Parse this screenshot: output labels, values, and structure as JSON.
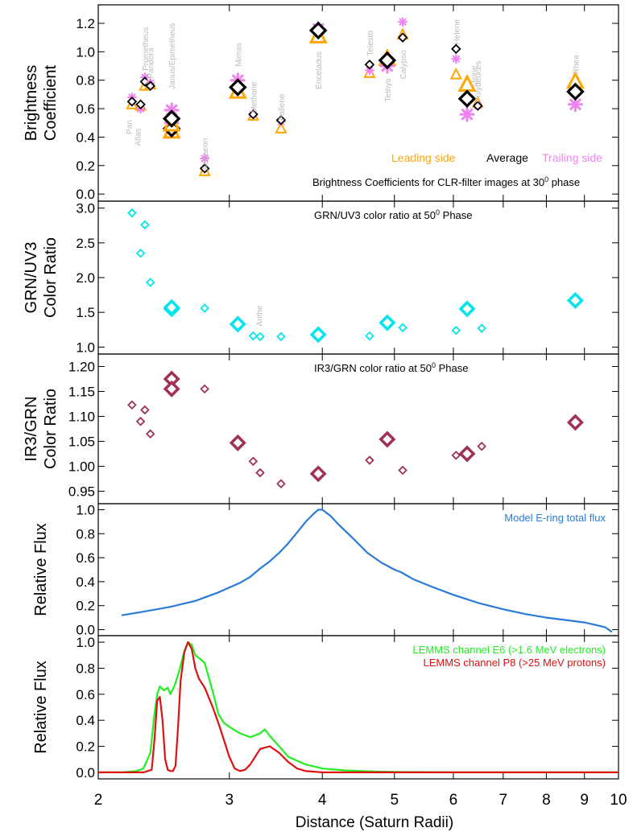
{
  "chart_data": [
    {
      "id": "brightness",
      "type": "scatter",
      "ylabel_lines": [
        "Brightness",
        "Coefficient"
      ],
      "ylim": [
        -0.05,
        1.33
      ],
      "yticks": [
        "1.2",
        "1.0",
        "0.8",
        "0.6",
        "0.4",
        "0.2",
        "0.0"
      ],
      "ytick_values": [
        1.2,
        1.0,
        0.8,
        0.6,
        0.4,
        0.2,
        0.0
      ],
      "annotation": "Brightness Coefficients for CLR-filter images at 30",
      "annotation_sup": "0",
      "annotation_tail": " phase",
      "legend": {
        "leading": "Leading side",
        "average": "Average",
        "trailing": "Trailing side"
      },
      "colors": {
        "leading": "#ffa500",
        "average": "#000000",
        "trailing": "#ee82ee",
        "moon_label": "#bbbbbb"
      },
      "moons": [
        {
          "name": "Pan",
          "x": 2.22,
          "avg": 0.65,
          "lead": 0.63,
          "trail": 0.68,
          "size": "small",
          "label_y": 0.47,
          "label_dx": -4
        },
        {
          "name": "Atlas",
          "x": 2.28,
          "avg": 0.63,
          "lead": 0.62,
          "trail": 0.6,
          "size": "small",
          "label_y": 0.4,
          "label_dx": -4
        },
        {
          "name": "Prometheus",
          "x": 2.31,
          "avg": 0.79,
          "lead": 0.76,
          "trail": 0.82,
          "size": "small",
          "label_y": 1.02,
          "label_dx": 0
        },
        {
          "name": "Pandora",
          "x": 2.35,
          "avg": 0.76,
          "lead": 0.77,
          "trail": 0.78,
          "size": "small",
          "label_y": 0.92,
          "label_dx": 0
        },
        {
          "name": "Janus/Epimetheus",
          "x": 2.51,
          "avg": 0.46,
          "lead": 0.44,
          "trail": 0.5,
          "size": "large",
          "label_y": 0.97,
          "label_dx": 0
        },
        {
          "name": "Janus/Epimetheus 2",
          "x": 2.51,
          "avg": 0.53,
          "lead": 0.49,
          "trail": 0.59,
          "size": "large",
          "label_y": null,
          "label_dx": 0
        },
        {
          "name": "Aegaeon",
          "x": 2.78,
          "avg": 0.18,
          "lead": 0.16,
          "trail": 0.25,
          "size": "small",
          "label_y": 0.28,
          "label_dx": 0
        },
        {
          "name": "Mimas",
          "x": 3.08,
          "avg": 0.75,
          "lead": 0.72,
          "trail": 0.8,
          "size": "large",
          "label_y": 0.98,
          "label_dx": 0
        },
        {
          "name": "Methone",
          "x": 3.23,
          "avg": 0.56,
          "lead": 0.55,
          "trail": 0.56,
          "size": "small",
          "label_y": 0.68,
          "label_dx": 0
        },
        {
          "name": "Pallene",
          "x": 3.52,
          "avg": 0.52,
          "lead": 0.46,
          "trail": 0.51,
          "size": "small",
          "label_y": 0.61,
          "label_dx": 0
        },
        {
          "name": "Enceladus",
          "x": 3.95,
          "avg": 1.15,
          "lead": 1.11,
          "trail": 1.16,
          "size": "large",
          "label_y": 0.87,
          "label_dx": 0
        },
        {
          "name": "Telesto",
          "x": 4.63,
          "avg": 0.91,
          "lead": 0.85,
          "trail": 0.87,
          "size": "small",
          "label_y": 1.06,
          "label_dx": 0
        },
        {
          "name": "Tethys",
          "x": 4.89,
          "avg": 0.94,
          "lead": 0.95,
          "trail": 0.9,
          "size": "large",
          "label_y": 0.73,
          "label_dx": 0
        },
        {
          "name": "Calypso",
          "x": 5.13,
          "avg": 1.1,
          "lead": 1.12,
          "trail": 1.21,
          "size": "small",
          "label_y": 0.91,
          "label_dx": 0
        },
        {
          "name": "Helene",
          "x": 6.05,
          "avg": 1.02,
          "lead": 0.84,
          "trail": 0.95,
          "size": "small",
          "label_y": 1.14,
          "label_dx": 0
        },
        {
          "name": "Dione",
          "x": 6.26,
          "avg": 0.67,
          "lead": 0.77,
          "trail": 0.56,
          "size": "large",
          "label_y": 0.83,
          "label_dx": 8
        },
        {
          "name": "Polydeuces",
          "x": 6.47,
          "avg": 0.62,
          "lead": 0.64,
          "trail": 0.62,
          "size": "small",
          "label_y": 0.79,
          "label_dx": 0
        },
        {
          "name": "Rhea",
          "x": 8.75,
          "avg": 0.72,
          "lead": 0.79,
          "trail": 0.63,
          "size": "large",
          "label_y": 0.91,
          "label_dx": 0
        }
      ]
    },
    {
      "id": "grn-uv3",
      "type": "scatter",
      "ylabel_lines": [
        "GRN/UV3",
        "Color Ratio"
      ],
      "ylim": [
        0.9,
        3.1
      ],
      "yticks": [
        "3.0",
        "2.5",
        "2.0",
        "1.5",
        "1.0"
      ],
      "ytick_values": [
        3.0,
        2.5,
        2.0,
        1.5,
        1.0
      ],
      "annotation": "GRN/UV3 color ratio at 50",
      "annotation_sup": "0",
      "annotation_tail": " Phase",
      "color": "#00e5ee",
      "moon_labels": [
        {
          "name": "Anthe",
          "x": 3.33,
          "y": 1.45
        }
      ],
      "points": [
        {
          "x": 2.22,
          "y": 2.93,
          "size": "small"
        },
        {
          "x": 2.28,
          "y": 2.35,
          "size": "small"
        },
        {
          "x": 2.31,
          "y": 2.76,
          "size": "small"
        },
        {
          "x": 2.35,
          "y": 1.93,
          "size": "small"
        },
        {
          "x": 2.51,
          "y": 1.55,
          "size": "large"
        },
        {
          "x": 2.51,
          "y": 1.57,
          "size": "large"
        },
        {
          "x": 2.78,
          "y": 1.56,
          "size": "small"
        },
        {
          "x": 3.08,
          "y": 1.33,
          "size": "large"
        },
        {
          "x": 3.23,
          "y": 1.16,
          "size": "small"
        },
        {
          "x": 3.3,
          "y": 1.15,
          "size": "small"
        },
        {
          "x": 3.52,
          "y": 1.15,
          "size": "small"
        },
        {
          "x": 3.95,
          "y": 1.18,
          "size": "large"
        },
        {
          "x": 4.63,
          "y": 1.16,
          "size": "small"
        },
        {
          "x": 4.89,
          "y": 1.35,
          "size": "large"
        },
        {
          "x": 5.13,
          "y": 1.28,
          "size": "small"
        },
        {
          "x": 6.05,
          "y": 1.24,
          "size": "small"
        },
        {
          "x": 6.26,
          "y": 1.55,
          "size": "large"
        },
        {
          "x": 6.55,
          "y": 1.27,
          "size": "small"
        },
        {
          "x": 8.75,
          "y": 1.67,
          "size": "large"
        }
      ]
    },
    {
      "id": "ir3-grn",
      "type": "scatter",
      "ylabel_lines": [
        "IR3/GRN",
        "Color Ratio"
      ],
      "ylim": [
        0.925,
        1.225
      ],
      "yticks": [
        "1.20",
        "1.15",
        "1.10",
        "1.05",
        "1.00",
        "0.95"
      ],
      "ytick_values": [
        1.2,
        1.15,
        1.1,
        1.05,
        1.0,
        0.95
      ],
      "annotation": "IR3/GRN color ratio at 50",
      "annotation_sup": "0",
      "annotation_tail": " Phase",
      "color": "#a0305a",
      "points": [
        {
          "x": 2.22,
          "y": 1.123,
          "size": "small"
        },
        {
          "x": 2.28,
          "y": 1.09,
          "size": "small"
        },
        {
          "x": 2.31,
          "y": 1.113,
          "size": "small"
        },
        {
          "x": 2.35,
          "y": 1.065,
          "size": "small"
        },
        {
          "x": 2.51,
          "y": 1.175,
          "size": "large"
        },
        {
          "x": 2.51,
          "y": 1.155,
          "size": "large"
        },
        {
          "x": 2.78,
          "y": 1.155,
          "size": "small"
        },
        {
          "x": 3.08,
          "y": 1.047,
          "size": "large"
        },
        {
          "x": 3.23,
          "y": 1.01,
          "size": "small"
        },
        {
          "x": 3.3,
          "y": 0.987,
          "size": "small"
        },
        {
          "x": 3.52,
          "y": 0.965,
          "size": "small"
        },
        {
          "x": 3.95,
          "y": 0.985,
          "size": "large"
        },
        {
          "x": 4.63,
          "y": 1.012,
          "size": "small"
        },
        {
          "x": 4.89,
          "y": 1.054,
          "size": "large"
        },
        {
          "x": 5.13,
          "y": 0.992,
          "size": "small"
        },
        {
          "x": 6.05,
          "y": 1.022,
          "size": "small"
        },
        {
          "x": 6.26,
          "y": 1.025,
          "size": "large"
        },
        {
          "x": 6.55,
          "y": 1.04,
          "size": "small"
        },
        {
          "x": 8.75,
          "y": 1.088,
          "size": "large"
        }
      ]
    },
    {
      "id": "e-ring",
      "type": "line",
      "ylabel_lines": [
        "Relative Flux"
      ],
      "ylim": [
        -0.05,
        1.05
      ],
      "yticks": [
        "1.0",
        "0.8",
        "0.6",
        "0.4",
        "0.2",
        "0.0"
      ],
      "ytick_values": [
        1.0,
        0.8,
        0.6,
        0.4,
        0.2,
        0.0
      ],
      "series": [
        {
          "name": "Model E-ring total flux",
          "color": "#2a7ad8",
          "x": [
            2.15,
            2.3,
            2.5,
            2.7,
            2.9,
            3.1,
            3.2,
            3.3,
            3.4,
            3.5,
            3.6,
            3.7,
            3.8,
            3.9,
            3.95,
            4.0,
            4.1,
            4.2,
            4.4,
            4.6,
            4.8,
            5.0,
            5.1,
            5.3,
            5.6,
            6.0,
            6.5,
            7.0,
            7.5,
            8.0,
            8.5,
            9.0,
            9.3,
            9.6,
            9.8
          ],
          "y": [
            0.12,
            0.15,
            0.19,
            0.24,
            0.31,
            0.39,
            0.44,
            0.51,
            0.57,
            0.64,
            0.72,
            0.81,
            0.9,
            0.97,
            1.0,
            1.0,
            0.95,
            0.88,
            0.76,
            0.64,
            0.56,
            0.5,
            0.48,
            0.42,
            0.36,
            0.29,
            0.22,
            0.17,
            0.13,
            0.1,
            0.08,
            0.06,
            0.04,
            0.02,
            -0.02
          ]
        }
      ]
    },
    {
      "id": "lemms",
      "type": "line",
      "ylabel_lines": [
        "Relative Flux"
      ],
      "ylim": [
        -0.05,
        1.05
      ],
      "yticks": [
        "1.0",
        "0.8",
        "0.6",
        "0.4",
        "0.2",
        "0.0"
      ],
      "ytick_values": [
        1.0,
        0.8,
        0.6,
        0.4,
        0.2,
        0.0
      ],
      "xlabel": "Distance (Saturn Radii)",
      "xlim": [
        2,
        10
      ],
      "xscale": "log",
      "xticks": [
        "2",
        "3",
        "4",
        "5",
        "6",
        "7",
        "8",
        "9",
        "10"
      ],
      "xtick_values": [
        2,
        3,
        4,
        5,
        6,
        7,
        8,
        9,
        10
      ],
      "series": [
        {
          "name": "LEMMS channel E6 (>1.6 MeV electrons)",
          "color": "#22ee22",
          "x": [
            2.0,
            2.15,
            2.25,
            2.3,
            2.35,
            2.38,
            2.4,
            2.42,
            2.45,
            2.48,
            2.5,
            2.53,
            2.57,
            2.61,
            2.64,
            2.67,
            2.7,
            2.73,
            2.78,
            2.85,
            2.9,
            2.95,
            3.0,
            3.1,
            3.2,
            3.3,
            3.35,
            3.4,
            3.5,
            3.6,
            3.8,
            4.0,
            4.3,
            4.6,
            5.0,
            6.0,
            7.0,
            8.0,
            10.0
          ],
          "y": [
            0.0,
            0.0,
            0.01,
            0.03,
            0.15,
            0.45,
            0.6,
            0.66,
            0.63,
            0.65,
            0.6,
            0.66,
            0.78,
            0.93,
            1.0,
            0.98,
            0.9,
            0.88,
            0.84,
            0.62,
            0.45,
            0.38,
            0.35,
            0.3,
            0.27,
            0.3,
            0.33,
            0.28,
            0.2,
            0.12,
            0.06,
            0.03,
            0.015,
            0.008,
            0.004,
            0.0,
            0.0,
            0.0,
            0.0
          ]
        },
        {
          "name": "LEMMS channel P8 (>25 MeV protons)",
          "color": "#dd1111",
          "x": [
            2.0,
            2.3,
            2.36,
            2.38,
            2.4,
            2.42,
            2.44,
            2.46,
            2.48,
            2.5,
            2.52,
            2.54,
            2.56,
            2.58,
            2.61,
            2.64,
            2.67,
            2.7,
            2.73,
            2.78,
            2.85,
            2.9,
            2.95,
            3.0,
            3.05,
            3.1,
            3.15,
            3.2,
            3.3,
            3.4,
            3.5,
            3.6,
            3.7,
            3.8,
            4.0,
            4.5,
            10.0
          ],
          "y": [
            0.0,
            0.0,
            0.02,
            0.25,
            0.55,
            0.58,
            0.4,
            0.1,
            0.02,
            0.01,
            0.01,
            0.05,
            0.35,
            0.7,
            0.92,
            1.0,
            0.95,
            0.8,
            0.72,
            0.65,
            0.5,
            0.38,
            0.25,
            0.12,
            0.03,
            0.01,
            0.02,
            0.06,
            0.18,
            0.2,
            0.15,
            0.08,
            0.03,
            0.01,
            0.0,
            0.0,
            0.0
          ]
        }
      ]
    }
  ]
}
